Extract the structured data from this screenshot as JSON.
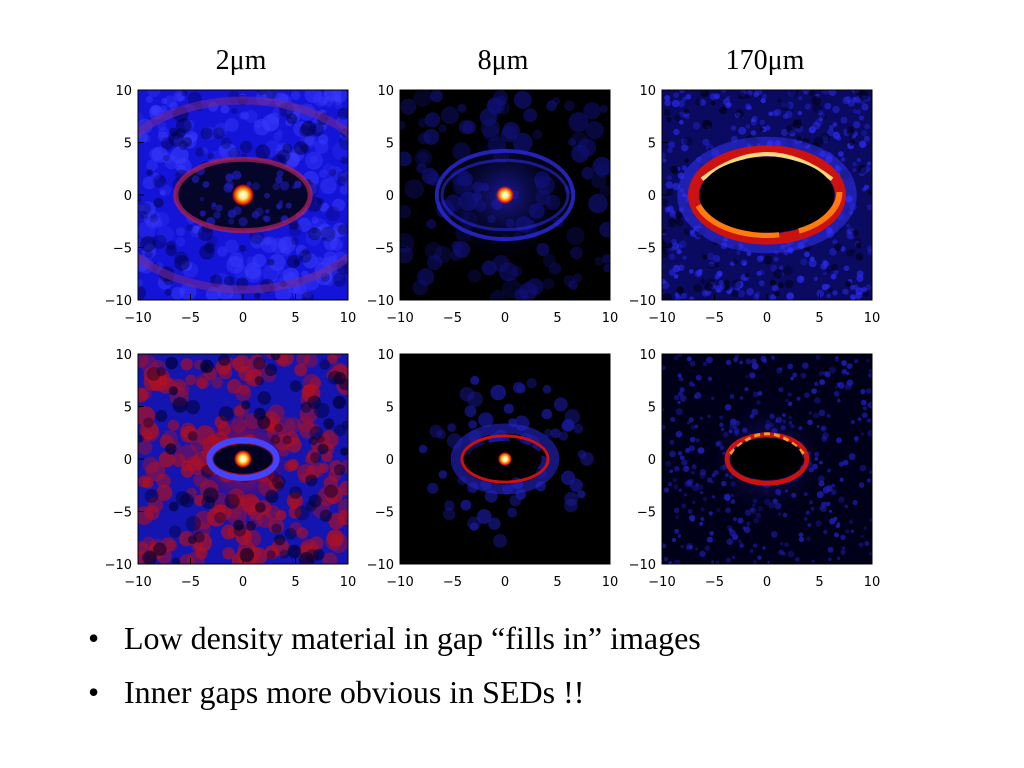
{
  "titles": [
    "2μm",
    "8μm",
    "170μm"
  ],
  "panels": [
    {
      "row": 0,
      "col": 0,
      "wavelength": "2μm"
    },
    {
      "row": 0,
      "col": 1,
      "wavelength": "8μm"
    },
    {
      "row": 0,
      "col": 2,
      "wavelength": "170μm"
    },
    {
      "row": 1,
      "col": 0,
      "wavelength": "2μm"
    },
    {
      "row": 1,
      "col": 1,
      "wavelength": "8μm"
    },
    {
      "row": 1,
      "col": 2,
      "wavelength": "170μm"
    }
  ],
  "chart_data": {
    "type": "heatmap",
    "xlim": [
      -10,
      10
    ],
    "ylim": [
      -10,
      10
    ],
    "xticks": [
      "−10",
      "−5",
      "0",
      "5",
      "10"
    ],
    "yticks": [
      "10",
      "5",
      "0",
      "−5",
      "−10"
    ]
  },
  "colors": {
    "background": "#000000",
    "low": "#1a1aff",
    "mid": "#cc1111",
    "high": "#ffee88"
  },
  "bullets": [
    "Low density material in gap “fills in” images",
    "Inner gaps more obvious in SEDs !!"
  ]
}
